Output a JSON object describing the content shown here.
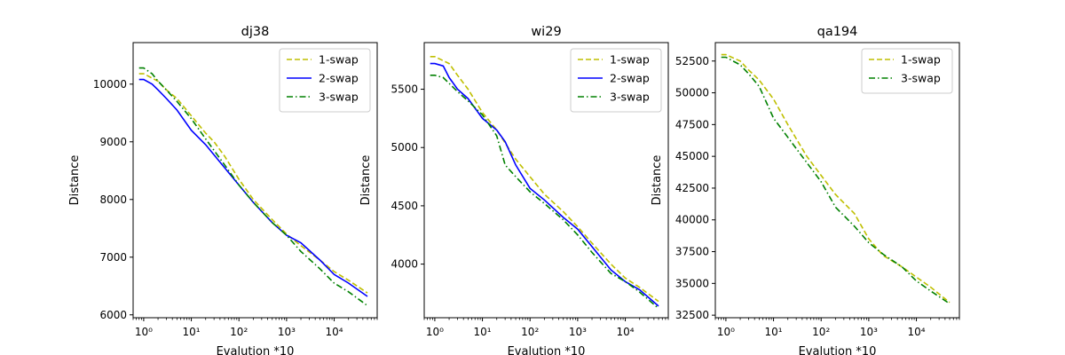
{
  "chart_data": [
    {
      "type": "line",
      "title": "dj38",
      "xlabel": "Evalution *10",
      "ylabel": "Distance",
      "xscale": "log",
      "xlim": [
        0.6,
        80000
      ],
      "ylim": [
        5950,
        10720
      ],
      "yticks": [
        6000,
        7000,
        8000,
        9000,
        10000
      ],
      "xticks": [
        1,
        10,
        100,
        1000,
        10000
      ],
      "xtick_labels": [
        "10⁰",
        "10¹",
        "10²",
        "10³",
        "10⁴"
      ],
      "legend_position": "top-right",
      "series": [
        {
          "name": "1-swap",
          "style": "dashed",
          "color": "#bfbf00",
          "x": [
            0.8,
            1,
            2,
            3,
            5,
            10,
            20,
            30,
            50,
            100,
            200,
            500,
            1000,
            2000,
            5000,
            10000,
            20000,
            50000
          ],
          "y": [
            10180,
            10180,
            10050,
            9900,
            9750,
            9450,
            9150,
            9000,
            8750,
            8350,
            8000,
            7650,
            7400,
            7200,
            6950,
            6750,
            6600,
            6380
          ]
        },
        {
          "name": "2-swap",
          "style": "solid",
          "color": "#0000ff",
          "x": [
            0.8,
            1,
            1.5,
            2,
            3,
            5,
            10,
            20,
            50,
            100,
            200,
            500,
            1000,
            2000,
            5000,
            10000,
            20000,
            50000
          ],
          "y": [
            10080,
            10080,
            10000,
            9900,
            9750,
            9550,
            9200,
            8950,
            8550,
            8250,
            7950,
            7600,
            7380,
            7250,
            6950,
            6700,
            6550,
            6320
          ]
        },
        {
          "name": "3-swap",
          "style": "dashdot",
          "color": "#008000",
          "x": [
            0.8,
            1,
            1.5,
            2,
            3,
            5,
            10,
            20,
            50,
            100,
            200,
            500,
            1000,
            2000,
            5000,
            10000,
            20000,
            50000
          ],
          "y": [
            10280,
            10280,
            10180,
            10050,
            9900,
            9700,
            9400,
            9050,
            8600,
            8250,
            7950,
            7600,
            7380,
            7100,
            6800,
            6550,
            6400,
            6160
          ]
        }
      ]
    },
    {
      "type": "line",
      "title": "wi29",
      "xlabel": "Evalution *10",
      "ylabel": "Distance",
      "xscale": "log",
      "xlim": [
        0.6,
        80000
      ],
      "ylim": [
        3540,
        5900
      ],
      "yticks": [
        4000,
        4500,
        5000,
        5500
      ],
      "xticks": [
        1,
        10,
        100,
        1000,
        10000
      ],
      "xtick_labels": [
        "10⁰",
        "10¹",
        "10²",
        "10³",
        "10⁴"
      ],
      "legend_position": "top-right",
      "series": [
        {
          "name": "1-swap",
          "style": "dashed",
          "color": "#bfbf00",
          "x": [
            0.8,
            1,
            2,
            3,
            5,
            10,
            20,
            50,
            100,
            200,
            500,
            1000,
            2000,
            5000,
            10000,
            20000,
            50000
          ],
          "y": [
            5780,
            5780,
            5720,
            5620,
            5500,
            5300,
            5150,
            4900,
            4750,
            4600,
            4450,
            4320,
            4180,
            4000,
            3880,
            3800,
            3680
          ]
        },
        {
          "name": "2-swap",
          "style": "solid",
          "color": "#0000ff",
          "x": [
            0.8,
            1,
            1.5,
            2,
            3,
            5,
            10,
            20,
            30,
            50,
            100,
            200,
            500,
            1000,
            2000,
            5000,
            10000,
            20000,
            50000
          ],
          "y": [
            5720,
            5720,
            5700,
            5600,
            5500,
            5420,
            5250,
            5150,
            5050,
            4850,
            4650,
            4550,
            4400,
            4300,
            4150,
            3950,
            3850,
            3780,
            3640
          ]
        },
        {
          "name": "3-swap",
          "style": "dashdot",
          "color": "#008000",
          "x": [
            0.8,
            1,
            1.5,
            2,
            3,
            5,
            10,
            20,
            30,
            50,
            100,
            200,
            500,
            1000,
            2000,
            5000,
            10000,
            20000,
            50000
          ],
          "y": [
            5620,
            5620,
            5600,
            5550,
            5480,
            5400,
            5280,
            5100,
            4850,
            4750,
            4620,
            4520,
            4380,
            4250,
            4100,
            3920,
            3850,
            3760,
            3620
          ]
        }
      ]
    },
    {
      "type": "line",
      "title": "qa194",
      "xlabel": "Evalution *10",
      "ylabel": "Distance",
      "xscale": "log",
      "xlim": [
        0.6,
        80000
      ],
      "ylim": [
        32300,
        53950
      ],
      "yticks": [
        32500,
        35000,
        37500,
        40000,
        42500,
        45000,
        47500,
        50000,
        52500
      ],
      "xticks": [
        1,
        10,
        100,
        1000,
        10000
      ],
      "xtick_labels": [
        "10⁰",
        "10¹",
        "10²",
        "10³",
        "10⁴"
      ],
      "legend_position": "top-right",
      "series": [
        {
          "name": "1-swap",
          "style": "dashed",
          "color": "#bfbf00",
          "x": [
            0.8,
            1,
            2,
            3,
            5,
            10,
            20,
            50,
            100,
            200,
            500,
            1000,
            2000,
            5000,
            10000,
            20000,
            50000
          ],
          "y": [
            53000,
            53000,
            52500,
            51800,
            51000,
            49500,
            47500,
            45000,
            43500,
            42000,
            40500,
            38500,
            37200,
            36300,
            35500,
            34700,
            33500
          ]
        },
        {
          "name": "3-swap",
          "style": "dashdot",
          "color": "#008000",
          "x": [
            0.8,
            1,
            2,
            3,
            5,
            10,
            20,
            50,
            100,
            200,
            500,
            1000,
            2000,
            5000,
            10000,
            20000,
            50000
          ],
          "y": [
            52800,
            52800,
            52200,
            51500,
            50500,
            48000,
            46500,
            44500,
            43000,
            41000,
            39500,
            38200,
            37300,
            36300,
            35200,
            34400,
            33400
          ]
        }
      ]
    }
  ]
}
